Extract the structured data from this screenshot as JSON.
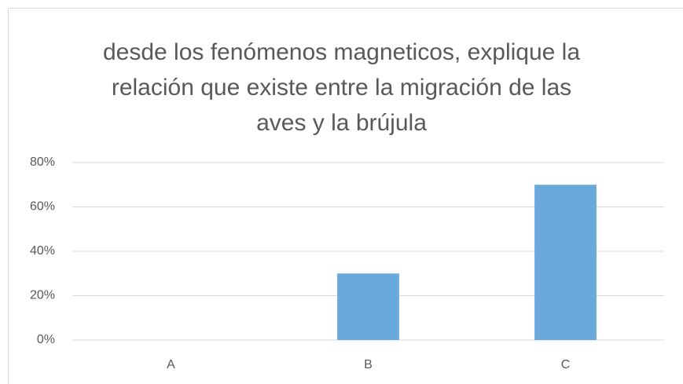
{
  "chart_data": {
    "type": "bar",
    "title": "desde los fenómenos magneticos, explique la relación que existe entre la migración de las aves y la brújula",
    "categories": [
      "A",
      "B",
      "C"
    ],
    "values": [
      0,
      30,
      70
    ],
    "color": "#6aa9dc",
    "ylim": [
      0,
      80
    ],
    "yticks": [
      {
        "value": 0,
        "label": "0%"
      },
      {
        "value": 20,
        "label": "20%"
      },
      {
        "value": 40,
        "label": "40%"
      },
      {
        "value": 60,
        "label": "60%"
      },
      {
        "value": 80,
        "label": "80%"
      }
    ],
    "grid": true
  }
}
